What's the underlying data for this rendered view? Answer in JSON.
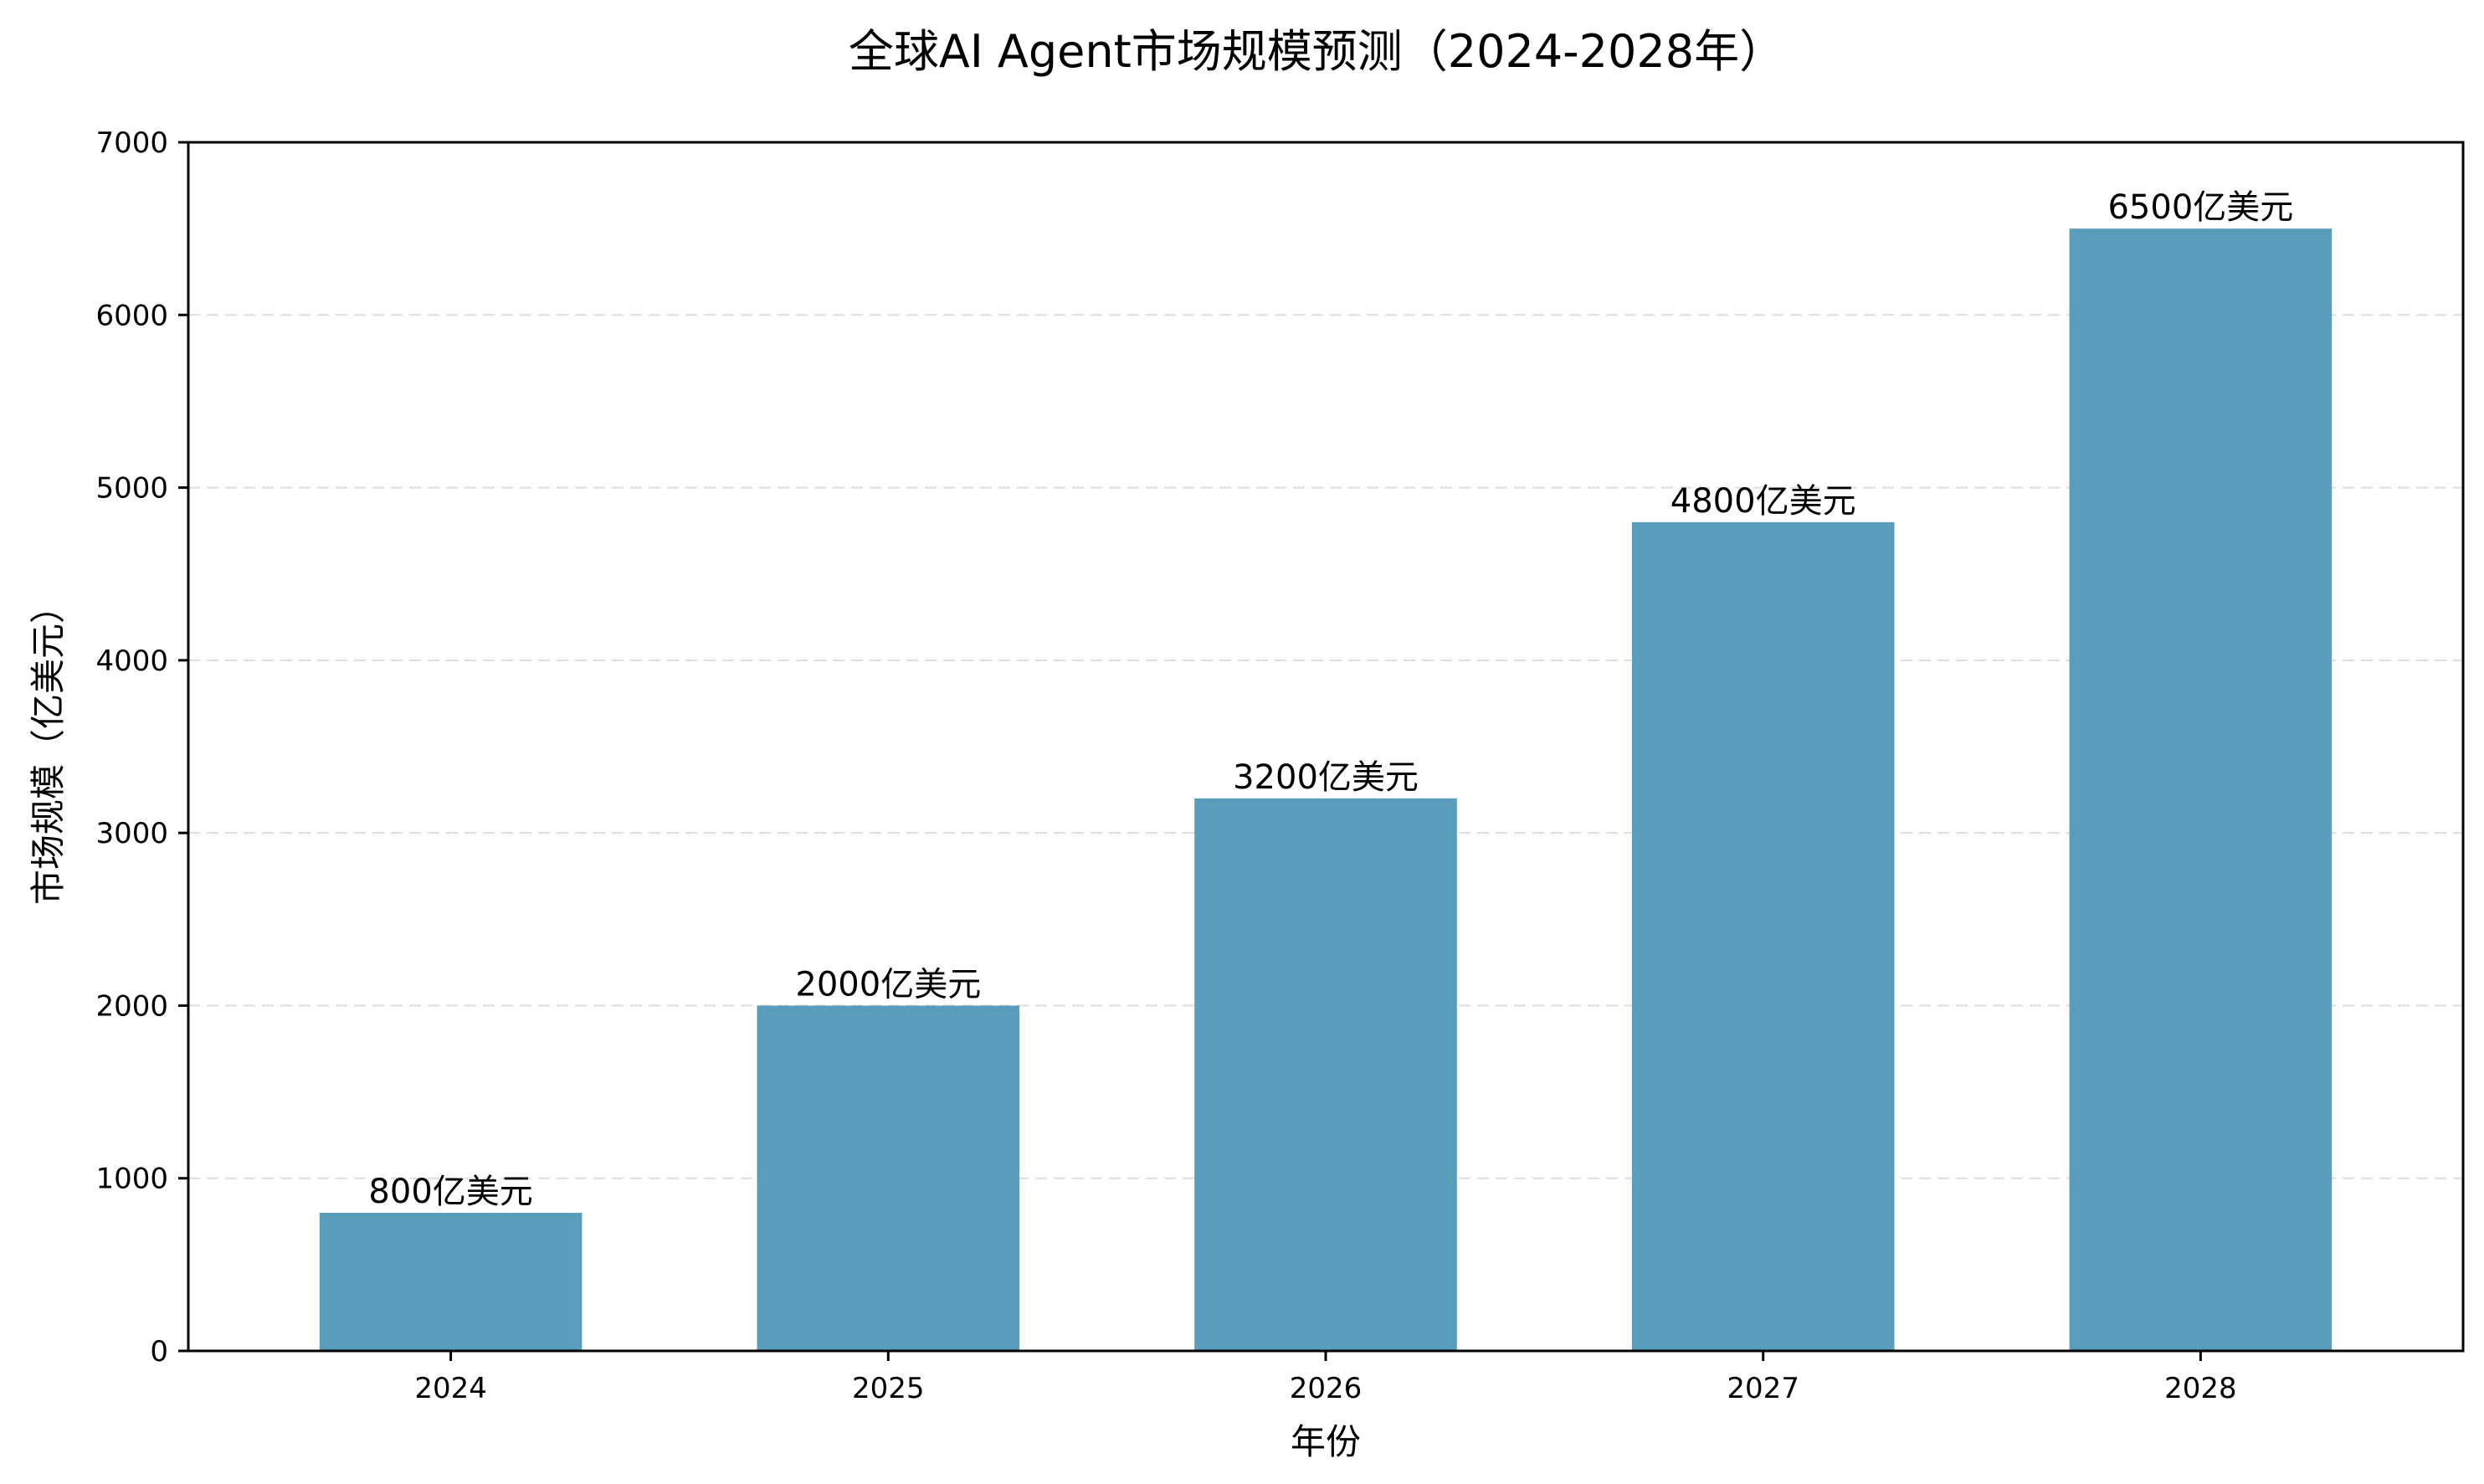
{
  "chart_data": {
    "type": "bar",
    "title": "全球AI Agent市场规模预测（2024-2028年）",
    "xlabel": "年份",
    "ylabel": "市场规模（亿美元）",
    "categories": [
      "2024",
      "2025",
      "2026",
      "2027",
      "2028"
    ],
    "values": [
      800,
      2000,
      3200,
      4800,
      6500
    ],
    "data_labels": [
      "800亿美元",
      "2000亿美元",
      "3200亿美元",
      "4800亿美元",
      "6500亿美元"
    ],
    "ylim": [
      0,
      7000
    ],
    "yticks": [
      "0",
      "1000",
      "2000",
      "3000",
      "4000",
      "5000",
      "6000",
      "7000"
    ],
    "grid": "horizontal dashed",
    "bar_color": "#5a9dbb",
    "grid_color": "#dddddd",
    "axis_color": "#000000"
  }
}
